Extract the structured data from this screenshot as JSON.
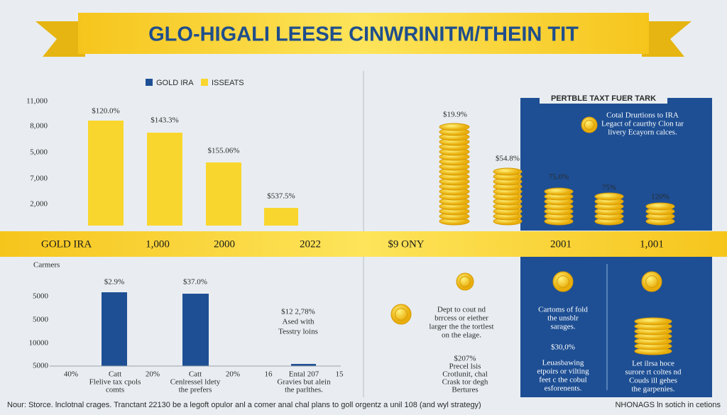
{
  "banner": {
    "title": "GLO-HIGALI LEESE CINWRINITM/THEIN TIT"
  },
  "legend": [
    "GOLD IRA",
    "ISSEATS"
  ],
  "top_chart": {
    "y_labels": [
      "11,000",
      "8,000",
      "5,000",
      "7,000",
      "2,000"
    ],
    "bar_labels": [
      "$120.0%",
      "$143.3%",
      "$155.06%",
      "$537.5%"
    ]
  },
  "coins": {
    "labels": [
      "$19.9%",
      "$54.8%",
      "75.0%",
      "75%",
      "120%"
    ]
  },
  "tax_box": {
    "title": "PERTBLE TAXT FUER TARK",
    "text": [
      "Cotal Drurtions to IRA",
      "Legact of caurthy Clon tar",
      "livery Ecayorn calces."
    ]
  },
  "band": {
    "labels": [
      "GOLD IRA",
      "1,000",
      "2000",
      "2022",
      "$9 ONY",
      "2001",
      "1,001"
    ]
  },
  "lower_chart": {
    "title": "Carmers",
    "y_labels": [
      "5000",
      "5000",
      "10000",
      "5000"
    ],
    "bar_labels": [
      "$2.9%",
      "$37.0%"
    ],
    "note": [
      "$12 2,78%",
      "Ased with",
      "Tesstry loins"
    ],
    "x_labels": [
      [
        "40%"
      ],
      [
        "Catt",
        "Flelive tax cpols",
        "comts"
      ],
      [
        "20%"
      ],
      [
        "Catt",
        "Cenlressel ldety",
        "the prefers"
      ],
      [
        "20%"
      ],
      [
        "16"
      ],
      [
        "Ental 207",
        "Gravies but alein",
        "the parlthes."
      ],
      [
        "15"
      ]
    ]
  },
  "middle_notes": {
    "first": [
      "Dept to cout nd",
      "brrcess or eiether",
      "larger the the tortlest",
      "on the elage."
    ],
    "second": [
      "$207%",
      "Precel lsis",
      "Crotlunit, chal",
      "Crask tor degh",
      "Bertures"
    ]
  },
  "blue_notes": {
    "left": [
      "Cartoms of fold",
      "the unsblr",
      "sarages."
    ],
    "value": "$30,0%",
    "left_detail": [
      "Leuasbawing",
      "etpoirs or vilting",
      "feet c the cobul",
      "esforenents."
    ],
    "right": [
      "Let ilrsa hoce",
      "surore rt coltes nd",
      "Couds ill gehes",
      "the garpenies."
    ]
  },
  "footer": {
    "source": "Nour: Storce. lnclotnal crages. Tranctant 22130 be a legoft opulor anl a comer anal chal plans to goll orgentz a unil 108 (and wyl strategy)",
    "right": "NHONAGS ln sotich in cetions"
  }
}
